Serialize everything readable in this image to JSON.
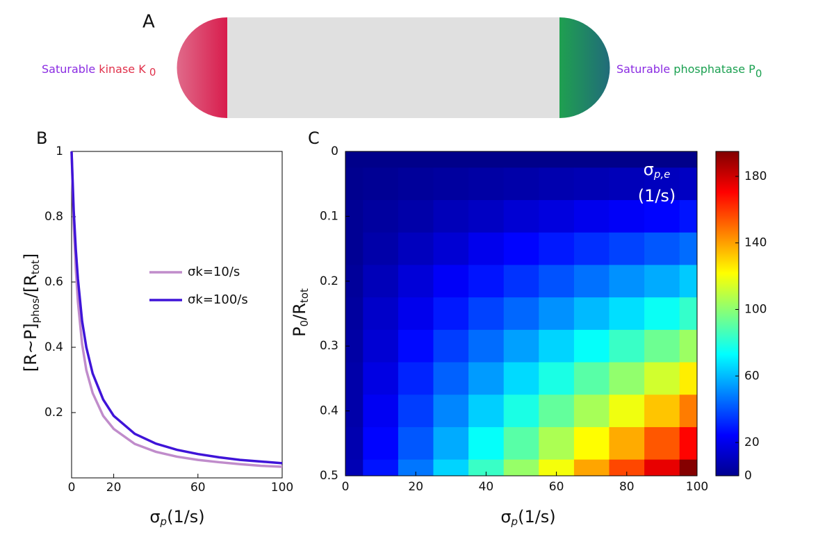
{
  "diagram": {
    "panel": "A",
    "left_prefix": "Saturable",
    "left_label": "kinase K",
    "left_sub": "0",
    "right_prefix": "Saturable",
    "right_label": "phosphatase P",
    "right_sub": "0"
  },
  "chart_data": [
    {
      "type": "line",
      "panel": "B",
      "xlabel": [
        "σ",
        "p",
        "(1/s)"
      ],
      "ylabel": [
        "[R~P]",
        "phos",
        "/[R",
        "tot",
        "]"
      ],
      "x": [
        0,
        1,
        2,
        3,
        5,
        7,
        10,
        15,
        20,
        30,
        40,
        50,
        60,
        70,
        80,
        90,
        100
      ],
      "series": [
        {
          "name": "σk=10/s",
          "color": "#c08ccb",
          "values": [
            1,
            0.78,
            0.64,
            0.54,
            0.41,
            0.33,
            0.26,
            0.19,
            0.15,
            0.104,
            0.08,
            0.065,
            0.055,
            0.048,
            0.042,
            0.037,
            0.034
          ]
        },
        {
          "name": "σk=100/s",
          "color": "#3f14d8",
          "values": [
            1,
            0.82,
            0.7,
            0.61,
            0.48,
            0.4,
            0.32,
            0.24,
            0.19,
            0.135,
            0.105,
            0.086,
            0.073,
            0.063,
            0.055,
            0.05,
            0.045
          ]
        }
      ],
      "xlim": [
        0,
        100
      ],
      "xticks": [
        0,
        20,
        60,
        100
      ],
      "ylim": [
        0,
        1
      ],
      "yticks": [
        0.2,
        0.4,
        0.6,
        0.8,
        1
      ]
    },
    {
      "type": "heatmap",
      "panel": "C",
      "xlabel": [
        "σ",
        "p",
        "(1/s)"
      ],
      "ylabel": [
        "P",
        "0",
        "/R",
        "tot"
      ],
      "colorbar_label": [
        "σ",
        "p,e",
        "(1/s)"
      ],
      "x": [
        0,
        10,
        20,
        30,
        40,
        50,
        60,
        70,
        80,
        90,
        100
      ],
      "y": [
        0,
        0.05,
        0.1,
        0.15,
        0.2,
        0.25,
        0.3,
        0.35,
        0.4,
        0.45,
        0.5
      ],
      "values": [
        [
          2,
          2,
          2,
          2,
          2,
          2,
          2,
          2,
          2,
          2,
          2
        ],
        [
          3,
          4,
          5,
          6,
          7,
          8,
          9,
          10,
          11,
          12,
          13
        ],
        [
          4,
          6,
          8,
          11,
          13,
          16,
          18,
          21,
          23,
          25,
          28
        ],
        [
          4,
          8,
          12,
          16,
          21,
          25,
          29,
          33,
          37,
          41,
          45
        ],
        [
          5,
          11,
          17,
          23,
          28,
          34,
          40,
          46,
          52,
          57,
          63
        ],
        [
          6,
          14,
          21,
          29,
          37,
          44,
          52,
          60,
          67,
          75,
          83
        ],
        [
          7,
          16,
          26,
          36,
          45,
          55,
          65,
          74,
          84,
          94,
          103
        ],
        [
          8,
          19,
          31,
          43,
          54,
          66,
          78,
          90,
          101,
          113,
          125
        ],
        [
          8,
          22,
          36,
          50,
          64,
          78,
          92,
          105,
          119,
          133,
          147
        ],
        [
          9,
          25,
          41,
          57,
          74,
          90,
          106,
          122,
          138,
          154,
          170
        ],
        [
          10,
          28,
          47,
          65,
          84,
          102,
          120,
          139,
          157,
          175,
          194
        ]
      ],
      "xlim": [
        0,
        100
      ],
      "xticks": [
        0,
        20,
        40,
        60,
        80,
        100
      ],
      "ylim": [
        0,
        0.5
      ],
      "yticks": [
        0,
        0.1,
        0.2,
        0.3,
        0.4,
        0.5
      ],
      "y_reversed": true,
      "colormap": "jet",
      "clim": [
        0,
        195
      ],
      "colorbar_ticks": [
        0,
        20,
        60,
        100,
        140,
        180
      ]
    }
  ]
}
